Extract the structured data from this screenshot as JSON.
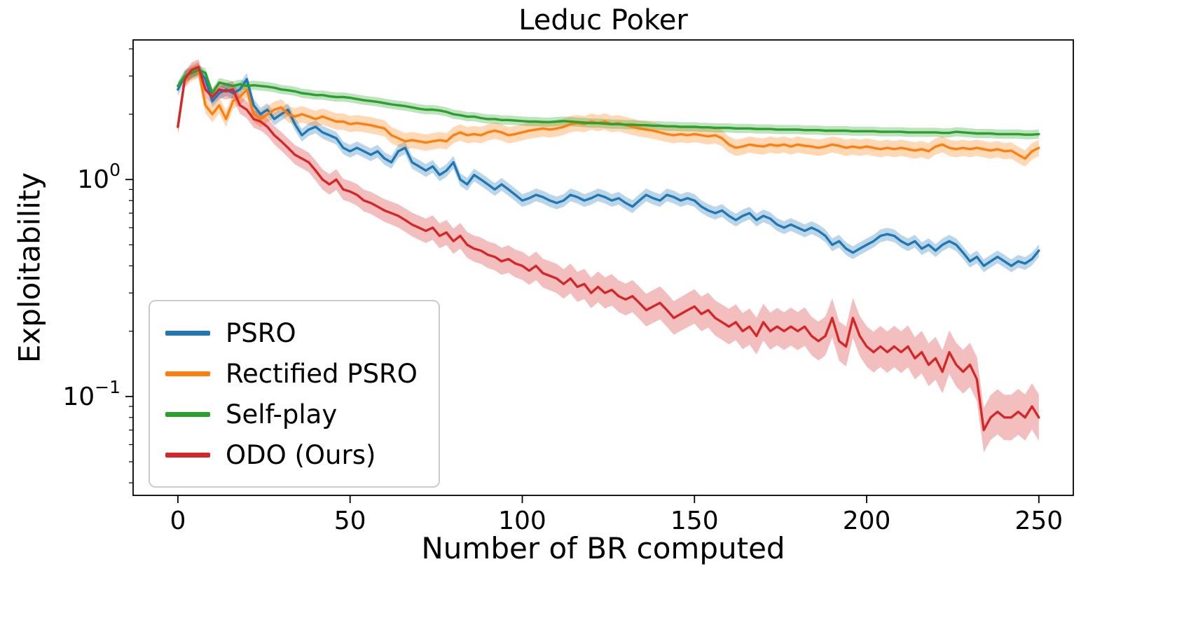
{
  "chart_data": {
    "type": "line",
    "title": "Leduc Poker",
    "xlabel": "Number of BR computed",
    "ylabel": "Exploitability",
    "yscale": "log",
    "grid": false,
    "legend_position": "lower left",
    "xlim": [
      -13,
      260
    ],
    "ylim": [
      0.035,
      4.4
    ],
    "x_ticks": [
      0,
      50,
      100,
      150,
      200,
      250
    ],
    "y_tick_exponents": [
      0,
      -1
    ],
    "x_start": 0,
    "x_step": 2,
    "series": [
      {
        "name": "PSRO",
        "color": "#1f77b4",
        "band_ratio": 0.07,
        "values": [
          2.6,
          3.0,
          3.1,
          3.2,
          2.9,
          2.3,
          2.5,
          2.6,
          2.5,
          2.6,
          2.9,
          2.2,
          2.0,
          2.1,
          1.9,
          2.0,
          2.1,
          1.8,
          1.6,
          1.7,
          1.75,
          1.65,
          1.6,
          1.55,
          1.4,
          1.35,
          1.4,
          1.35,
          1.3,
          1.35,
          1.25,
          1.2,
          1.35,
          1.4,
          1.2,
          1.15,
          1.1,
          1.15,
          1.05,
          1.1,
          1.2,
          1.0,
          0.95,
          1.05,
          1.0,
          0.95,
          0.9,
          0.95,
          0.9,
          0.85,
          0.8,
          0.82,
          0.85,
          0.83,
          0.8,
          0.78,
          0.8,
          0.85,
          0.83,
          0.8,
          0.82,
          0.85,
          0.83,
          0.8,
          0.82,
          0.78,
          0.75,
          0.8,
          0.85,
          0.82,
          0.8,
          0.85,
          0.83,
          0.8,
          0.82,
          0.8,
          0.75,
          0.72,
          0.7,
          0.72,
          0.68,
          0.65,
          0.68,
          0.7,
          0.65,
          0.68,
          0.66,
          0.62,
          0.6,
          0.62,
          0.6,
          0.58,
          0.6,
          0.58,
          0.55,
          0.5,
          0.52,
          0.48,
          0.46,
          0.48,
          0.5,
          0.52,
          0.55,
          0.56,
          0.55,
          0.52,
          0.5,
          0.52,
          0.48,
          0.5,
          0.47,
          0.5,
          0.52,
          0.5,
          0.46,
          0.42,
          0.44,
          0.4,
          0.42,
          0.44,
          0.42,
          0.4,
          0.42,
          0.41,
          0.43,
          0.47
        ]
      },
      {
        "name": "Rectified PSRO",
        "color": "#ff7f0e",
        "band_ratio": 0.09,
        "values": [
          1.75,
          2.9,
          3.1,
          3.2,
          2.2,
          2.0,
          2.2,
          1.9,
          2.3,
          2.4,
          2.6,
          2.0,
          1.9,
          2.0,
          2.1,
          2.15,
          2.0,
          1.95,
          2.0,
          1.95,
          1.9,
          1.95,
          1.9,
          1.85,
          1.85,
          1.8,
          1.82,
          1.8,
          1.78,
          1.75,
          1.72,
          1.6,
          1.55,
          1.5,
          1.52,
          1.5,
          1.48,
          1.5,
          1.52,
          1.5,
          1.6,
          1.65,
          1.6,
          1.62,
          1.6,
          1.65,
          1.68,
          1.65,
          1.6,
          1.62,
          1.65,
          1.68,
          1.7,
          1.72,
          1.7,
          1.72,
          1.75,
          1.8,
          1.82,
          1.8,
          1.85,
          1.82,
          1.85,
          1.8,
          1.82,
          1.78,
          1.75,
          1.72,
          1.7,
          1.68,
          1.65,
          1.62,
          1.6,
          1.62,
          1.6,
          1.62,
          1.6,
          1.58,
          1.6,
          1.55,
          1.45,
          1.4,
          1.42,
          1.45,
          1.43,
          1.42,
          1.45,
          1.43,
          1.45,
          1.42,
          1.45,
          1.43,
          1.42,
          1.4,
          1.42,
          1.45,
          1.43,
          1.4,
          1.42,
          1.4,
          1.42,
          1.4,
          1.38,
          1.4,
          1.38,
          1.4,
          1.38,
          1.36,
          1.38,
          1.35,
          1.42,
          1.45,
          1.4,
          1.38,
          1.4,
          1.38,
          1.4,
          1.38,
          1.36,
          1.38,
          1.35,
          1.36,
          1.3,
          1.25,
          1.35,
          1.4
        ]
      },
      {
        "name": "Self-play",
        "color": "#2ca02c",
        "band_ratio": 0.05,
        "values": [
          2.7,
          3.0,
          3.1,
          3.2,
          3.1,
          2.5,
          2.8,
          2.75,
          2.7,
          2.75,
          2.7,
          2.72,
          2.7,
          2.68,
          2.65,
          2.6,
          2.58,
          2.55,
          2.5,
          2.48,
          2.45,
          2.45,
          2.42,
          2.4,
          2.4,
          2.38,
          2.35,
          2.32,
          2.3,
          2.28,
          2.25,
          2.22,
          2.2,
          2.18,
          2.15,
          2.12,
          2.1,
          2.1,
          2.08,
          2.05,
          2.0,
          1.98,
          1.95,
          1.95,
          1.92,
          1.9,
          1.9,
          1.88,
          1.88,
          1.87,
          1.86,
          1.85,
          1.85,
          1.84,
          1.84,
          1.85,
          1.86,
          1.85,
          1.84,
          1.83,
          1.82,
          1.82,
          1.81,
          1.8,
          1.8,
          1.79,
          1.79,
          1.78,
          1.78,
          1.77,
          1.77,
          1.76,
          1.76,
          1.75,
          1.75,
          1.75,
          1.74,
          1.74,
          1.73,
          1.73,
          1.73,
          1.72,
          1.72,
          1.72,
          1.71,
          1.71,
          1.71,
          1.7,
          1.7,
          1.7,
          1.7,
          1.69,
          1.69,
          1.69,
          1.68,
          1.68,
          1.68,
          1.68,
          1.67,
          1.67,
          1.67,
          1.67,
          1.66,
          1.66,
          1.66,
          1.66,
          1.65,
          1.65,
          1.65,
          1.65,
          1.65,
          1.64,
          1.64,
          1.66,
          1.65,
          1.64,
          1.63,
          1.63,
          1.63,
          1.62,
          1.62,
          1.62,
          1.62,
          1.61,
          1.61,
          1.62
        ]
      },
      {
        "name": "ODO (Ours)",
        "color": "#d62728",
        "band_ratio": 0.08,
        "band_ratio_end": 0.28,
        "values": [
          1.75,
          2.9,
          3.2,
          3.3,
          2.6,
          2.4,
          2.6,
          2.55,
          2.6,
          2.2,
          2.1,
          1.9,
          1.85,
          1.75,
          1.6,
          1.5,
          1.4,
          1.3,
          1.25,
          1.2,
          1.1,
          1.0,
          0.95,
          1.0,
          0.9,
          0.88,
          0.85,
          0.8,
          0.78,
          0.75,
          0.72,
          0.7,
          0.68,
          0.65,
          0.62,
          0.6,
          0.58,
          0.6,
          0.55,
          0.57,
          0.52,
          0.55,
          0.5,
          0.48,
          0.47,
          0.45,
          0.44,
          0.42,
          0.43,
          0.41,
          0.4,
          0.38,
          0.4,
          0.37,
          0.36,
          0.35,
          0.33,
          0.35,
          0.32,
          0.33,
          0.3,
          0.32,
          0.3,
          0.31,
          0.29,
          0.28,
          0.29,
          0.27,
          0.25,
          0.26,
          0.27,
          0.25,
          0.23,
          0.24,
          0.25,
          0.26,
          0.24,
          0.25,
          0.23,
          0.22,
          0.21,
          0.22,
          0.2,
          0.21,
          0.19,
          0.22,
          0.2,
          0.21,
          0.2,
          0.21,
          0.2,
          0.21,
          0.19,
          0.18,
          0.19,
          0.23,
          0.18,
          0.17,
          0.23,
          0.19,
          0.17,
          0.16,
          0.17,
          0.16,
          0.17,
          0.16,
          0.17,
          0.15,
          0.16,
          0.14,
          0.15,
          0.13,
          0.16,
          0.14,
          0.13,
          0.14,
          0.12,
          0.07,
          0.08,
          0.085,
          0.08,
          0.08,
          0.085,
          0.08,
          0.09,
          0.08
        ]
      }
    ]
  }
}
